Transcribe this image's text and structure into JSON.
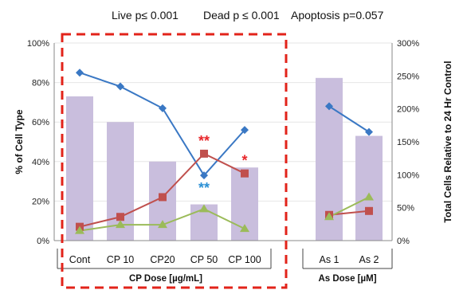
{
  "header": {
    "live": "Live  p≤ 0.001",
    "dead": "Dead p ≤ 0.001",
    "apoptosis": "Apoptosis  p=0.057"
  },
  "chart_data": {
    "type": "bar",
    "categories": [
      "Cont",
      "CP 10",
      "CP20",
      "CP 50",
      "CP 100",
      "As 1",
      "As 2"
    ],
    "groups": [
      {
        "label": "CP Dose  [µg/mL]",
        "categories": [
          "Cont",
          "CP 10",
          "CP20",
          "CP 50",
          "CP 100"
        ]
      },
      {
        "label": "As Dose  [µM]",
        "categories": [
          "As 1",
          "As 2"
        ]
      }
    ],
    "ylabel": "% of Cell Type",
    "ylabel_right": "Total Cells Relative to 24 Hr Control",
    "ylim": [
      0,
      100
    ],
    "ylim_right": [
      0,
      300
    ],
    "yticks": [
      "0%",
      "20%",
      "40%",
      "60%",
      "80%",
      "100%"
    ],
    "yticks_right": [
      "0%",
      "50%",
      "100%",
      "150%",
      "200%",
      "250%",
      "300%"
    ],
    "bars": {
      "axis": "right",
      "color": "#c9bedd",
      "values": [
        219,
        180,
        120,
        55,
        111,
        247,
        159
      ]
    },
    "series": [
      {
        "marker": "diamond",
        "color": "#3a78c4",
        "values": [
          85,
          78,
          67,
          33,
          56,
          68,
          55
        ]
      },
      {
        "marker": "square",
        "color": "#c0504d",
        "values": [
          7,
          12,
          22,
          44,
          34,
          13,
          15
        ]
      },
      {
        "marker": "triangle",
        "color": "#9bbb59",
        "values": [
          5,
          8,
          8,
          16,
          6,
          12,
          22
        ]
      }
    ],
    "annotations": [
      {
        "category": "CP 50",
        "text": "**",
        "color": "#e8262a",
        "anchor_value": 44
      },
      {
        "category": "CP 50",
        "text": "**",
        "color": "#2a8fd4",
        "anchor_value": 33,
        "below": true
      },
      {
        "category": "CP 100",
        "text": "*",
        "color": "#e8262a",
        "anchor_value": 34
      }
    ],
    "highlight_box": {
      "color": "#e2231a",
      "categories": [
        "Cont",
        "CP 10",
        "CP20",
        "CP 50",
        "CP 100"
      ]
    }
  }
}
